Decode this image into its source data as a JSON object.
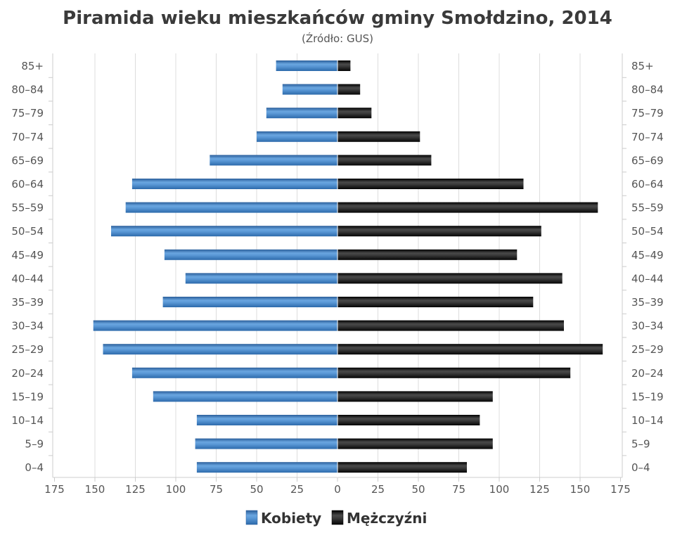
{
  "chart_data": {
    "type": "bar",
    "orientation": "horizontal-pyramid",
    "title": "Piramida wieku mieszkańców gminy Smołdzino, 2014",
    "subtitle": "(Źródło: GUS)",
    "categories": [
      "85+",
      "80-84",
      "75-79",
      "70-74",
      "65-69",
      "60-64",
      "55-59",
      "50-54",
      "45-49",
      "40-44",
      "35-39",
      "30-34",
      "25-29",
      "20-24",
      "15-19",
      "10-14",
      "5-9",
      "0-4"
    ],
    "series": [
      {
        "name": "Kobiety",
        "color": "#3c79bb",
        "values": [
          38,
          34,
          44,
          50,
          79,
          127,
          131,
          140,
          107,
          94,
          108,
          151,
          145,
          127,
          114,
          87,
          88,
          87
        ]
      },
      {
        "name": "Mężczyźni",
        "color": "#1a1a1a",
        "values": [
          8,
          14,
          21,
          51,
          58,
          115,
          161,
          126,
          111,
          139,
          121,
          140,
          164,
          144,
          96,
          88,
          96,
          80
        ]
      }
    ],
    "xticks": [
      "175",
      "150",
      "125",
      "100",
      "75",
      "50",
      "25",
      "0",
      "25",
      "50",
      "75",
      "100",
      "125",
      "150",
      "175"
    ],
    "xlim": [
      -175,
      175
    ],
    "grid": true,
    "legend_position": "bottom"
  }
}
